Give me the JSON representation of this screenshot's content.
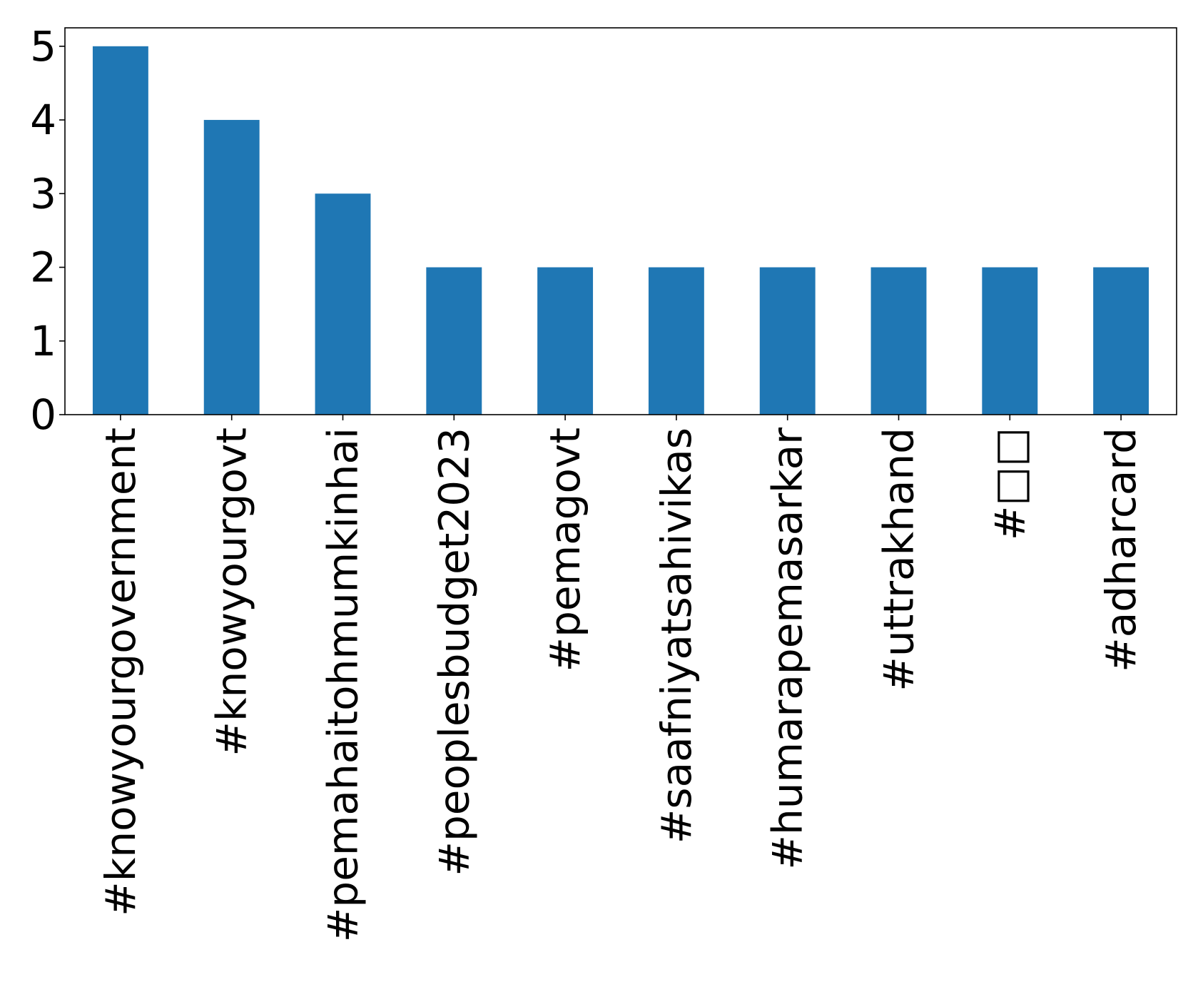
{
  "chart_data": {
    "type": "bar",
    "title": "",
    "xlabel": "",
    "ylabel": "",
    "categories": [
      "#knowyourgovernment",
      "#knowyourgovt",
      "#pemahaitohmumkinhai",
      "#peoplesbudget2023",
      "#pemagovt",
      "#saafniyatsahivikas",
      "#humarapemasarkar",
      "#uttrakhand",
      "#□□",
      "#adharcard"
    ],
    "values": [
      5,
      4,
      3,
      2,
      2,
      2,
      2,
      2,
      2,
      2
    ],
    "ylim": [
      0,
      5.25
    ],
    "yticks": [
      0,
      1,
      2,
      3,
      4,
      5
    ],
    "bar_color": "#1f77b4",
    "grid": false,
    "legend": "none"
  }
}
